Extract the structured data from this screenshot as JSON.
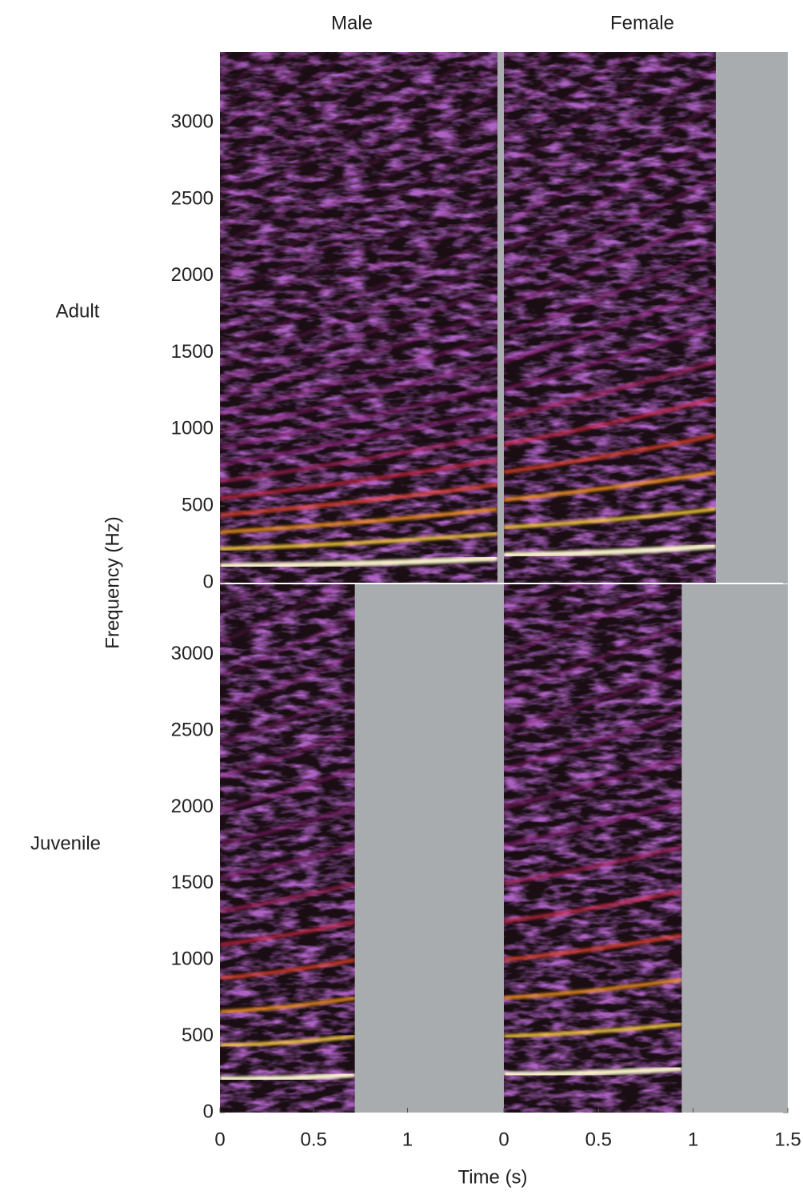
{
  "chart_data": {
    "type": "spectrogram",
    "columns": [
      "Male",
      "Female"
    ],
    "rows": [
      "Adult",
      "Juvenile"
    ],
    "ylabel": "Frequency (Hz)",
    "xlabel": "Time (s)",
    "ylim": [
      0,
      3460
    ],
    "yticks": [
      0,
      500,
      1000,
      1500,
      2000,
      2500,
      3000
    ],
    "xlim": [
      [
        0,
        1.48
      ],
      [
        0,
        1.5
      ]
    ],
    "xticks": [
      [
        0,
        0.5,
        1
      ],
      [
        0,
        0.5,
        1,
        1.5
      ]
    ],
    "duration": [
      [
        1.48,
        1.12
      ],
      [
        0.72,
        0.94
      ]
    ],
    "f0": [
      [
        [
          110,
          160
        ],
        [
          180,
          240
        ]
      ],
      [
        [
          220,
          250
        ],
        [
          250,
          290
        ]
      ]
    ]
  }
}
